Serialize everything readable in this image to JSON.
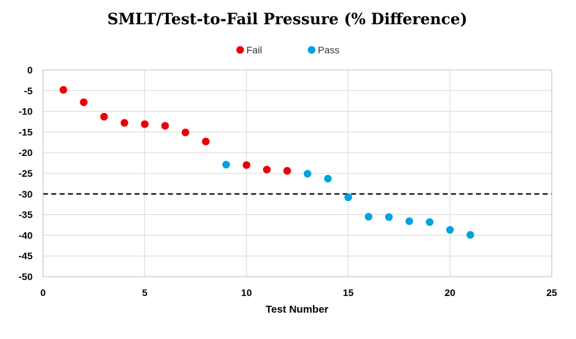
{
  "chart_data": {
    "type": "scatter",
    "title": "SMLT/Test-to-Fail Pressure (% Difference)",
    "xlabel": "Test Number",
    "ylabel": "",
    "xlim": [
      0,
      25
    ],
    "ylim": [
      -50,
      0
    ],
    "x_ticks": [
      0,
      5,
      10,
      15,
      20,
      25
    ],
    "y_ticks": [
      0,
      -5,
      -10,
      -15,
      -20,
      -25,
      -30,
      -35,
      -40,
      -45,
      -50
    ],
    "grid": true,
    "legend_position": "top",
    "reference_line": {
      "y": -30,
      "style": "dashed",
      "color": "#000000"
    },
    "series": [
      {
        "name": "Fail",
        "color": "#e8000b",
        "points": [
          [
            1,
            -4.8
          ],
          [
            2,
            -7.8
          ],
          [
            3,
            -11.3
          ],
          [
            4,
            -12.8
          ],
          [
            5,
            -13.1
          ],
          [
            6,
            -13.5
          ],
          [
            7,
            -15.1
          ],
          [
            8,
            -17.3
          ],
          [
            10,
            -23.0
          ],
          [
            11,
            -24.1
          ],
          [
            12,
            -24.4
          ]
        ]
      },
      {
        "name": "Pass",
        "color": "#00a2df",
        "points": [
          [
            9,
            -22.9
          ],
          [
            13,
            -25.1
          ],
          [
            14,
            -26.3
          ],
          [
            15,
            -30.8
          ],
          [
            16,
            -35.5
          ],
          [
            17,
            -35.6
          ],
          [
            18,
            -36.6
          ],
          [
            19,
            -36.8
          ],
          [
            20,
            -38.7
          ],
          [
            21,
            -39.9
          ]
        ]
      }
    ]
  }
}
